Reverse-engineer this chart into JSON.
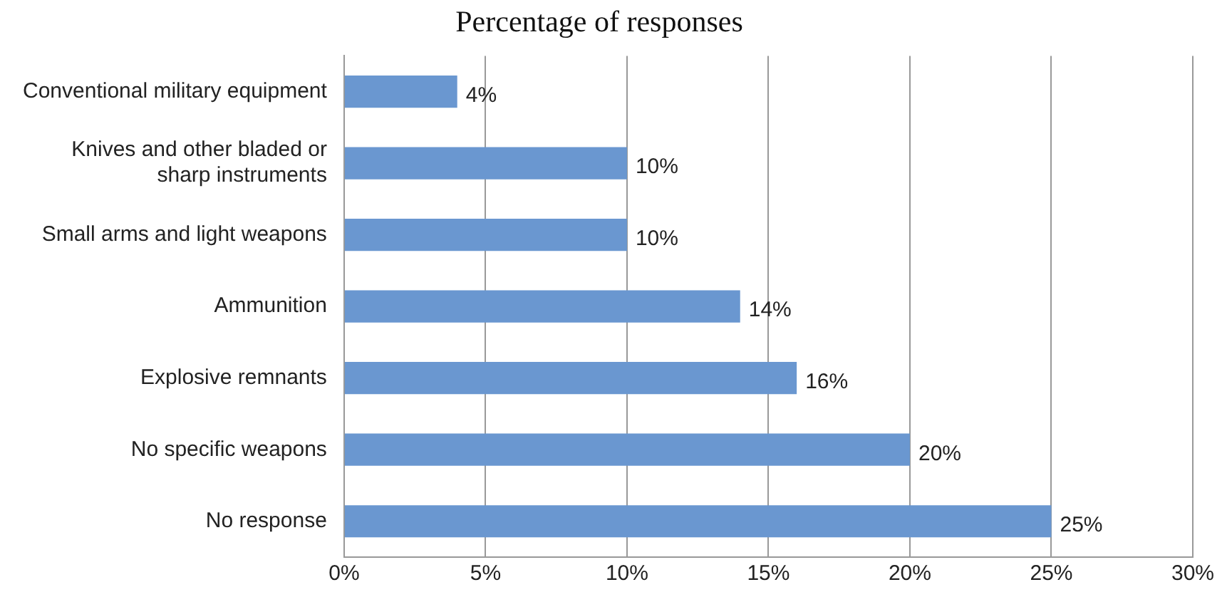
{
  "chart_data": {
    "type": "bar",
    "orientation": "horizontal",
    "title": "Percentage of responses",
    "categories": [
      "Conventional military equipment",
      "Knives and other bladed or sharp instruments",
      "Small arms and light weapons",
      "Ammunition",
      "Explosive remnants",
      "No specific weapons",
      "No response"
    ],
    "values": [
      4,
      10,
      10,
      14,
      16,
      20,
      25
    ],
    "color": "#6a97d0",
    "xlim": [
      0,
      30
    ],
    "xticks": [
      {
        "value": 0,
        "label": "0%"
      },
      {
        "value": 5,
        "label": "5%"
      },
      {
        "value": 10,
        "label": "10%"
      },
      {
        "value": 15,
        "label": "15%"
      },
      {
        "value": 20,
        "label": "20%"
      },
      {
        "value": 25,
        "label": "25%"
      },
      {
        "value": 30,
        "label": "30%"
      }
    ],
    "value_labels": [
      "4%",
      "10%",
      "10%",
      "14%",
      "16%",
      "20%",
      "25%"
    ],
    "grid": "x",
    "legend": false
  }
}
